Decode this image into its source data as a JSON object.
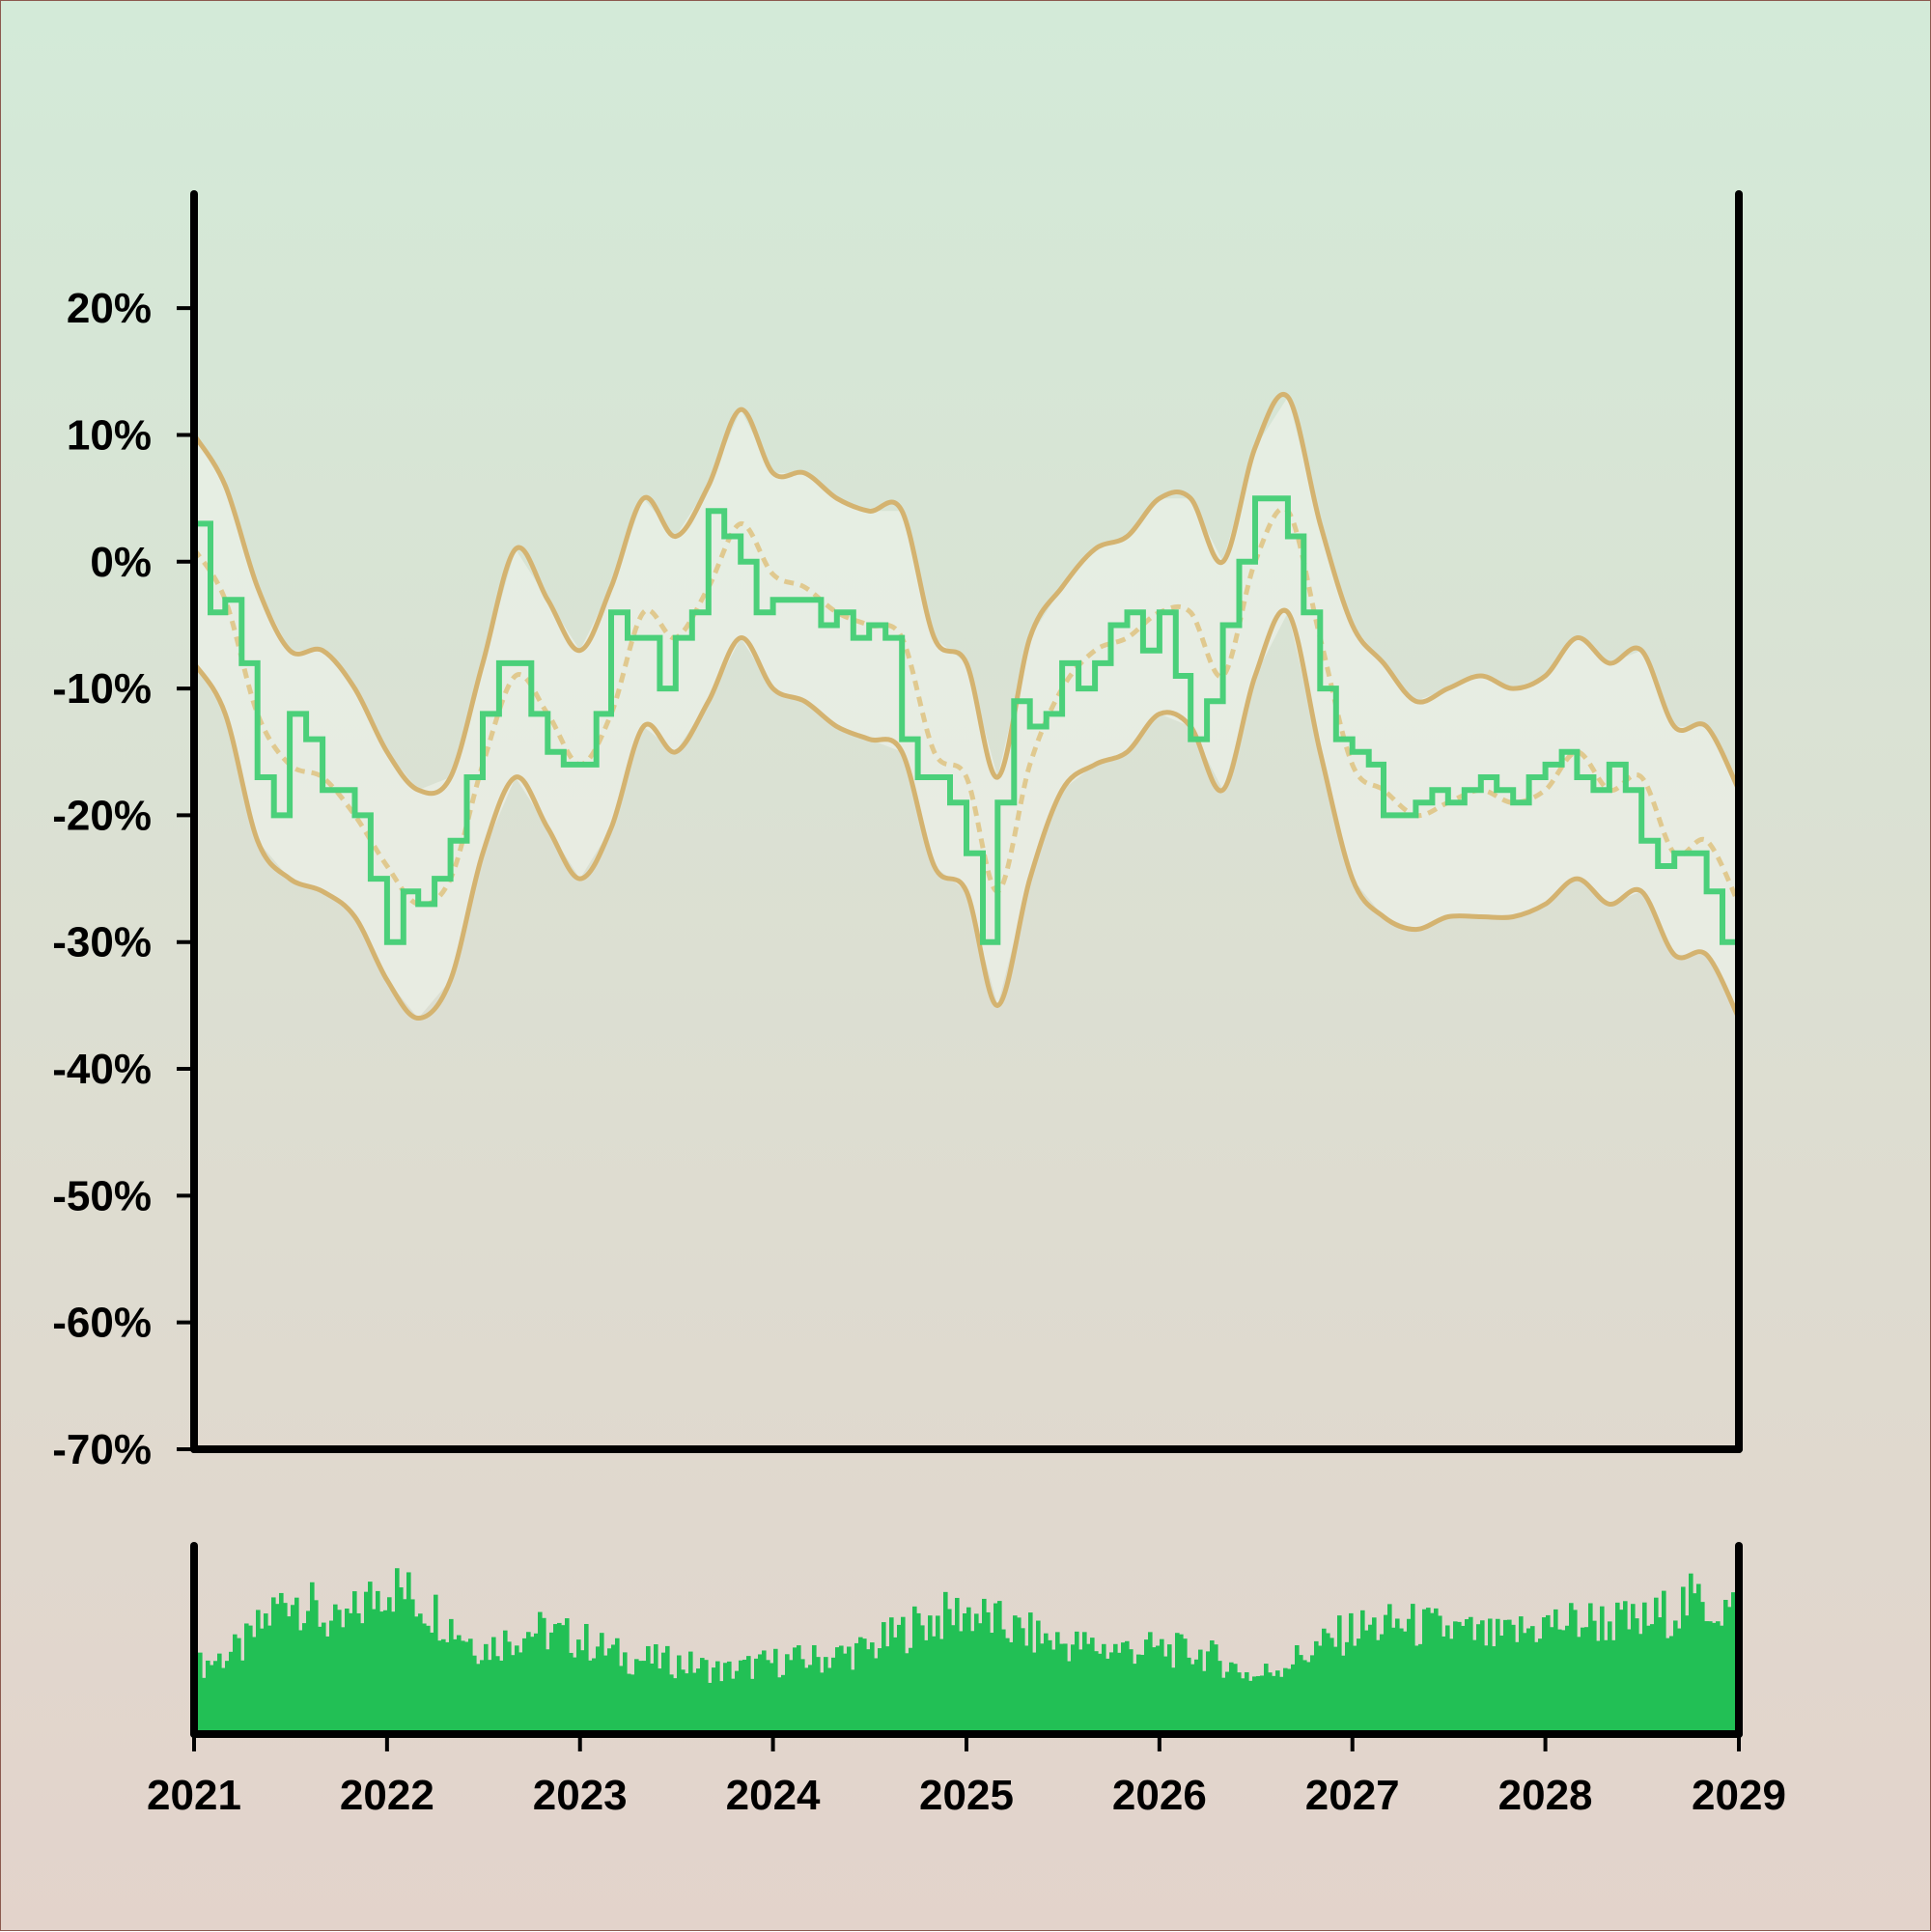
{
  "chart_data": {
    "type": "line",
    "title": "",
    "xlabel": "",
    "ylabel": "",
    "x_ticks": [
      "2021",
      "2022",
      "2023",
      "2024",
      "2025",
      "2026",
      "2027",
      "2028",
      "2029"
    ],
    "y_ticks": [
      "20%",
      "10%",
      "0%",
      "-10%",
      "-20%",
      "-30%",
      "-40%",
      "-50%",
      "-60%",
      "-70%"
    ],
    "xlim": [
      "2021-01-01",
      "2029-01-01"
    ],
    "ylim": [
      -70,
      29
    ],
    "grid": false,
    "legend": "none",
    "series": [
      {
        "role": "price",
        "style": "step-line",
        "color": "#4bd07a",
        "points": [
          [
            "2021-01-01",
            3
          ],
          [
            "2021-02-01",
            -4
          ],
          [
            "2021-03-01",
            -3
          ],
          [
            "2021-04-01",
            -8
          ],
          [
            "2021-05-01",
            -17
          ],
          [
            "2021-06-01",
            -20
          ],
          [
            "2021-07-01",
            -12
          ],
          [
            "2021-08-01",
            -14
          ],
          [
            "2021-09-01",
            -18
          ],
          [
            "2021-10-01",
            -18
          ],
          [
            "2021-11-01",
            -20
          ],
          [
            "2021-12-01",
            -25
          ],
          [
            "2022-01-01",
            -30
          ],
          [
            "2022-02-01",
            -26
          ],
          [
            "2022-03-01",
            -27
          ],
          [
            "2022-04-01",
            -25
          ],
          [
            "2022-05-01",
            -22
          ],
          [
            "2022-06-01",
            -17
          ],
          [
            "2022-07-01",
            -12
          ],
          [
            "2022-08-01",
            -8
          ],
          [
            "2022-09-01",
            -8
          ],
          [
            "2022-10-01",
            -12
          ],
          [
            "2022-11-01",
            -15
          ],
          [
            "2022-12-01",
            -16
          ],
          [
            "2023-01-01",
            -16
          ],
          [
            "2023-02-01",
            -12
          ],
          [
            "2023-03-01",
            -4
          ],
          [
            "2023-04-01",
            -6
          ],
          [
            "2023-05-01",
            -6
          ],
          [
            "2023-06-01",
            -10
          ],
          [
            "2023-07-01",
            -6
          ],
          [
            "2023-08-01",
            -4
          ],
          [
            "2023-09-01",
            4
          ],
          [
            "2023-10-01",
            2
          ],
          [
            "2023-11-01",
            0
          ],
          [
            "2023-12-01",
            -4
          ],
          [
            "2024-01-01",
            -3
          ],
          [
            "2024-02-01",
            -3
          ],
          [
            "2024-03-01",
            -3
          ],
          [
            "2024-04-01",
            -5
          ],
          [
            "2024-05-01",
            -4
          ],
          [
            "2024-06-01",
            -6
          ],
          [
            "2024-07-01",
            -5
          ],
          [
            "2024-08-01",
            -6
          ],
          [
            "2024-09-01",
            -14
          ],
          [
            "2024-10-01",
            -17
          ],
          [
            "2024-11-01",
            -17
          ],
          [
            "2024-12-01",
            -19
          ],
          [
            "2025-01-01",
            -23
          ],
          [
            "2025-02-01",
            -30
          ],
          [
            "2025-03-01",
            -19
          ],
          [
            "2025-04-01",
            -11
          ],
          [
            "2025-05-01",
            -13
          ],
          [
            "2025-06-01",
            -12
          ],
          [
            "2025-07-01",
            -8
          ],
          [
            "2025-08-01",
            -10
          ],
          [
            "2025-09-01",
            -8
          ],
          [
            "2025-10-01",
            -5
          ],
          [
            "2025-11-01",
            -4
          ],
          [
            "2025-12-01",
            -7
          ],
          [
            "2026-01-01",
            -4
          ],
          [
            "2026-02-01",
            -9
          ],
          [
            "2026-03-01",
            -14
          ],
          [
            "2026-04-01",
            -11
          ],
          [
            "2026-05-01",
            -5
          ],
          [
            "2026-06-01",
            0
          ],
          [
            "2026-07-01",
            5
          ],
          [
            "2026-08-01",
            5
          ],
          [
            "2026-09-01",
            2
          ],
          [
            "2026-10-01",
            -4
          ],
          [
            "2026-11-01",
            -10
          ],
          [
            "2026-12-01",
            -14
          ],
          [
            "2027-01-01",
            -15
          ],
          [
            "2027-02-01",
            -16
          ],
          [
            "2027-03-01",
            -20
          ],
          [
            "2027-04-01",
            -20
          ],
          [
            "2027-05-01",
            -19
          ],
          [
            "2027-06-01",
            -18
          ],
          [
            "2027-07-01",
            -19
          ],
          [
            "2027-08-01",
            -18
          ],
          [
            "2027-09-01",
            -17
          ],
          [
            "2027-10-01",
            -18
          ],
          [
            "2027-11-01",
            -19
          ],
          [
            "2027-12-01",
            -17
          ],
          [
            "2028-01-01",
            -16
          ],
          [
            "2028-02-01",
            -15
          ],
          [
            "2028-03-01",
            -17
          ],
          [
            "2028-04-01",
            -18
          ],
          [
            "2028-05-01",
            -16
          ],
          [
            "2028-06-01",
            -18
          ],
          [
            "2028-07-01",
            -22
          ],
          [
            "2028-08-01",
            -24
          ],
          [
            "2028-09-01",
            -23
          ],
          [
            "2028-10-01",
            -23
          ],
          [
            "2028-11-01",
            -26
          ],
          [
            "2028-12-01",
            -30
          ],
          [
            "2029-01-01",
            -33
          ]
        ]
      },
      {
        "role": "moving-average",
        "style": "dashed",
        "color": "#e0c98f",
        "points": [
          [
            "2021-01-01",
            1
          ],
          [
            "2021-03-01",
            -3
          ],
          [
            "2021-05-01",
            -12
          ],
          [
            "2021-07-01",
            -16
          ],
          [
            "2021-09-01",
            -17
          ],
          [
            "2021-11-01",
            -20
          ],
          [
            "2022-01-01",
            -24
          ],
          [
            "2022-03-01",
            -27
          ],
          [
            "2022-05-01",
            -25
          ],
          [
            "2022-07-01",
            -16
          ],
          [
            "2022-09-01",
            -9
          ],
          [
            "2022-11-01",
            -12
          ],
          [
            "2023-01-01",
            -16
          ],
          [
            "2023-03-01",
            -12
          ],
          [
            "2023-05-01",
            -4
          ],
          [
            "2023-07-01",
            -6
          ],
          [
            "2023-09-01",
            -2
          ],
          [
            "2023-11-01",
            3
          ],
          [
            "2024-01-01",
            -1
          ],
          [
            "2024-03-01",
            -2
          ],
          [
            "2024-05-01",
            -4
          ],
          [
            "2024-07-01",
            -5
          ],
          [
            "2024-09-01",
            -6
          ],
          [
            "2024-11-01",
            -15
          ],
          [
            "2025-01-01",
            -17
          ],
          [
            "2025-03-01",
            -26
          ],
          [
            "2025-05-01",
            -16
          ],
          [
            "2025-07-01",
            -10
          ],
          [
            "2025-09-01",
            -7
          ],
          [
            "2025-11-01",
            -6
          ],
          [
            "2026-01-01",
            -4
          ],
          [
            "2026-03-01",
            -4
          ],
          [
            "2026-05-01",
            -9
          ],
          [
            "2026-07-01",
            0
          ],
          [
            "2026-09-01",
            4
          ],
          [
            "2026-11-01",
            -6
          ],
          [
            "2027-01-01",
            -16
          ],
          [
            "2027-03-01",
            -18
          ],
          [
            "2027-05-01",
            -20
          ],
          [
            "2027-07-01",
            -19
          ],
          [
            "2027-09-01",
            -18
          ],
          [
            "2027-11-01",
            -19
          ],
          [
            "2028-01-01",
            -18
          ],
          [
            "2028-03-01",
            -15
          ],
          [
            "2028-05-01",
            -18
          ],
          [
            "2028-07-01",
            -17
          ],
          [
            "2028-09-01",
            -23
          ],
          [
            "2028-11-01",
            -22
          ],
          [
            "2029-01-01",
            -27
          ]
        ]
      },
      {
        "role": "upper-band",
        "style": "solid",
        "color": "#d4b370",
        "points": [
          [
            "2021-01-01",
            10
          ],
          [
            "2021-03-01",
            6
          ],
          [
            "2021-05-01",
            -2
          ],
          [
            "2021-07-01",
            -7
          ],
          [
            "2021-09-01",
            -7
          ],
          [
            "2021-11-01",
            -10
          ],
          [
            "2022-01-01",
            -15
          ],
          [
            "2022-03-01",
            -18
          ],
          [
            "2022-05-01",
            -17
          ],
          [
            "2022-07-01",
            -8
          ],
          [
            "2022-09-01",
            1
          ],
          [
            "2022-11-01",
            -3
          ],
          [
            "2023-01-01",
            -7
          ],
          [
            "2023-03-01",
            -2
          ],
          [
            "2023-05-01",
            5
          ],
          [
            "2023-07-01",
            2
          ],
          [
            "2023-09-01",
            6
          ],
          [
            "2023-11-01",
            12
          ],
          [
            "2024-01-01",
            7
          ],
          [
            "2024-03-01",
            7
          ],
          [
            "2024-05-01",
            5
          ],
          [
            "2024-07-01",
            4
          ],
          [
            "2024-09-01",
            4
          ],
          [
            "2024-11-01",
            -6
          ],
          [
            "2025-01-01",
            -8
          ],
          [
            "2025-03-01",
            -17
          ],
          [
            "2025-05-01",
            -6
          ],
          [
            "2025-07-01",
            -2
          ],
          [
            "2025-09-01",
            1
          ],
          [
            "2025-11-01",
            2
          ],
          [
            "2026-01-01",
            5
          ],
          [
            "2026-03-01",
            5
          ],
          [
            "2026-05-01",
            0
          ],
          [
            "2026-07-01",
            9
          ],
          [
            "2026-09-01",
            13
          ],
          [
            "2026-11-01",
            3
          ],
          [
            "2027-01-01",
            -5
          ],
          [
            "2027-03-01",
            -8
          ],
          [
            "2027-05-01",
            -11
          ],
          [
            "2027-07-01",
            -10
          ],
          [
            "2027-09-01",
            -9
          ],
          [
            "2027-11-01",
            -10
          ],
          [
            "2028-01-01",
            -9
          ],
          [
            "2028-03-01",
            -6
          ],
          [
            "2028-05-01",
            -8
          ],
          [
            "2028-07-01",
            -7
          ],
          [
            "2028-09-01",
            -13
          ],
          [
            "2028-11-01",
            -13
          ],
          [
            "2029-01-01",
            -18
          ]
        ]
      },
      {
        "role": "lower-band",
        "style": "solid",
        "color": "#d4b370",
        "points": [
          [
            "2021-01-01",
            -8
          ],
          [
            "2021-03-01",
            -12
          ],
          [
            "2021-05-01",
            -22
          ],
          [
            "2021-07-01",
            -25
          ],
          [
            "2021-09-01",
            -26
          ],
          [
            "2021-11-01",
            -28
          ],
          [
            "2022-01-01",
            -33
          ],
          [
            "2022-03-01",
            -36
          ],
          [
            "2022-05-01",
            -33
          ],
          [
            "2022-07-01",
            -23
          ],
          [
            "2022-09-01",
            -17
          ],
          [
            "2022-11-01",
            -21
          ],
          [
            "2023-01-01",
            -25
          ],
          [
            "2023-03-01",
            -21
          ],
          [
            "2023-05-01",
            -13
          ],
          [
            "2023-07-01",
            -15
          ],
          [
            "2023-09-01",
            -11
          ],
          [
            "2023-11-01",
            -6
          ],
          [
            "2024-01-01",
            -10
          ],
          [
            "2024-03-01",
            -11
          ],
          [
            "2024-05-01",
            -13
          ],
          [
            "2024-07-01",
            -14
          ],
          [
            "2024-09-01",
            -15
          ],
          [
            "2024-11-01",
            -24
          ],
          [
            "2025-01-01",
            -26
          ],
          [
            "2025-03-01",
            -35
          ],
          [
            "2025-05-01",
            -25
          ],
          [
            "2025-07-01",
            -18
          ],
          [
            "2025-09-01",
            -16
          ],
          [
            "2025-11-01",
            -15
          ],
          [
            "2026-01-01",
            -12
          ],
          [
            "2026-03-01",
            -13
          ],
          [
            "2026-05-01",
            -18
          ],
          [
            "2026-07-01",
            -9
          ],
          [
            "2026-09-01",
            -4
          ],
          [
            "2026-11-01",
            -15
          ],
          [
            "2027-01-01",
            -25
          ],
          [
            "2027-03-01",
            -28
          ],
          [
            "2027-05-01",
            -29
          ],
          [
            "2027-07-01",
            -28
          ],
          [
            "2027-09-01",
            -28
          ],
          [
            "2027-11-01",
            -28
          ],
          [
            "2028-01-01",
            -27
          ],
          [
            "2028-03-01",
            -25
          ],
          [
            "2028-05-01",
            -27
          ],
          [
            "2028-07-01",
            -26
          ],
          [
            "2028-09-01",
            -31
          ],
          [
            "2028-11-01",
            -31
          ],
          [
            "2029-01-01",
            -36
          ]
        ]
      }
    ],
    "volume": {
      "type": "bar",
      "color": "#22c055",
      "scale": [
        0,
        100
      ],
      "bar_count": 400,
      "envelope": [
        [
          "2021-01-01",
          35
        ],
        [
          "2021-04-01",
          45
        ],
        [
          "2021-07-01",
          75
        ],
        [
          "2021-10-01",
          55
        ],
        [
          "2022-01-01",
          80
        ],
        [
          "2022-04-01",
          65
        ],
        [
          "2022-07-01",
          45
        ],
        [
          "2022-10-01",
          55
        ],
        [
          "2023-01-01",
          50
        ],
        [
          "2023-04-01",
          40
        ],
        [
          "2023-07-01",
          38
        ],
        [
          "2023-10-01",
          33
        ],
        [
          "2024-01-01",
          38
        ],
        [
          "2024-04-01",
          40
        ],
        [
          "2024-07-01",
          45
        ],
        [
          "2024-10-01",
          58
        ],
        [
          "2025-01-01",
          65
        ],
        [
          "2025-04-01",
          55
        ],
        [
          "2025-07-01",
          48
        ],
        [
          "2025-10-01",
          45
        ],
        [
          "2026-01-01",
          45
        ],
        [
          "2026-04-01",
          42
        ],
        [
          "2026-07-01",
          30
        ],
        [
          "2026-10-01",
          42
        ],
        [
          "2027-01-01",
          55
        ],
        [
          "2027-04-01",
          58
        ],
        [
          "2027-07-01",
          55
        ],
        [
          "2027-10-01",
          50
        ],
        [
          "2028-01-01",
          58
        ],
        [
          "2028-04-01",
          60
        ],
        [
          "2028-07-01",
          58
        ],
        [
          "2028-10-01",
          70
        ],
        [
          "2029-01-01",
          65
        ]
      ]
    }
  }
}
